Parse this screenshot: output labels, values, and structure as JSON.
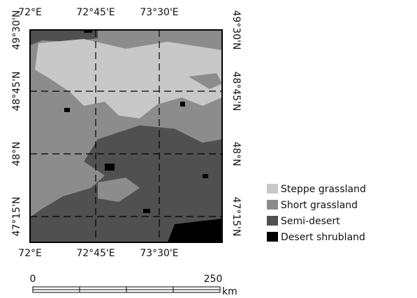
{
  "map": {
    "longitude_labels": [
      "72°E",
      "72°45'E",
      "73°30'E"
    ],
    "latitude_labels": [
      "49°30'N",
      "48°45'N",
      "48°N",
      "47°15'N"
    ],
    "legend": [
      {
        "label": "Steppe grassland",
        "color": "#c8c8c8"
      },
      {
        "label": "Short grassland",
        "color": "#8c8c8c"
      },
      {
        "label": "Semi-desert",
        "color": "#505050"
      },
      {
        "label": "Desert shrubland",
        "color": "#000000"
      }
    ],
    "scale_bar": {
      "start_label": "0",
      "end_label": "250",
      "unit": "km"
    }
  }
}
